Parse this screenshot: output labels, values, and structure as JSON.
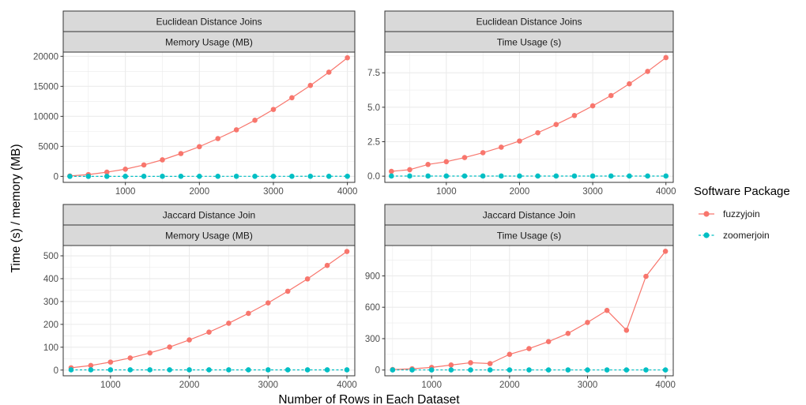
{
  "figure": {
    "ylabel": "Time (s) / memory (MB)",
    "xlabel": "Number of Rows in Each Dataset"
  },
  "legend": {
    "title": "Software Package",
    "items": [
      {
        "label": "fuzzyjoin",
        "color": "#F8766D",
        "linestyle": "solid"
      },
      {
        "label": "zoomerjoin",
        "color": "#00BFC4",
        "linestyle": "dashed"
      }
    ],
    "placement": "right"
  },
  "chart_data": [
    {
      "type": "line",
      "strip_top": "Euclidean Distance Joins",
      "strip_bottom": "Memory Usage (MB)",
      "xlim": [
        160,
        4100
      ],
      "ylim": [
        -1000,
        20700
      ],
      "xticks": [
        1000,
        2000,
        3000,
        4000
      ],
      "yticks": [
        0,
        5000,
        10000,
        15000,
        20000
      ],
      "ytick_labels": [
        "0",
        "5000",
        "10000",
        "15000",
        "20000"
      ],
      "series": [
        {
          "name": "fuzzyjoin",
          "x": [
            250,
            500,
            750,
            1000,
            1250,
            1500,
            1750,
            2000,
            2250,
            2500,
            2750,
            3000,
            3250,
            3500,
            3750,
            4000
          ],
          "y": [
            70,
            300,
            700,
            1200,
            1900,
            2750,
            3800,
            4950,
            6300,
            7750,
            9350,
            11150,
            13100,
            15150,
            17350,
            19750
          ]
        },
        {
          "name": "zoomerjoin",
          "x": [
            250,
            500,
            750,
            1000,
            1250,
            1500,
            1750,
            2000,
            2250,
            2500,
            2750,
            3000,
            3250,
            3500,
            3750,
            4000
          ],
          "y": [
            2,
            3,
            4,
            5,
            6,
            7,
            8,
            9,
            10,
            11,
            12,
            13,
            14,
            15,
            16,
            17
          ]
        }
      ]
    },
    {
      "type": "line",
      "strip_top": "Euclidean Distance Joins",
      "strip_bottom": "Time Usage (s)",
      "xlim": [
        160,
        4100
      ],
      "ylim": [
        -0.45,
        9.0
      ],
      "xticks": [
        1000,
        2000,
        3000,
        4000
      ],
      "yticks": [
        0.0,
        2.5,
        5.0,
        7.5
      ],
      "ytick_labels": [
        "0.0",
        "2.5",
        "5.0",
        "7.5"
      ],
      "series": [
        {
          "name": "fuzzyjoin",
          "x": [
            250,
            500,
            750,
            1000,
            1250,
            1500,
            1750,
            2000,
            2250,
            2500,
            2750,
            3000,
            3250,
            3500,
            3750,
            4000
          ],
          "y": [
            0.35,
            0.47,
            0.85,
            1.05,
            1.35,
            1.7,
            2.1,
            2.55,
            3.15,
            3.75,
            4.4,
            5.1,
            5.85,
            6.7,
            7.6,
            8.6
          ]
        },
        {
          "name": "zoomerjoin",
          "x": [
            250,
            500,
            750,
            1000,
            1250,
            1500,
            1750,
            2000,
            2250,
            2500,
            2750,
            3000,
            3250,
            3500,
            3750,
            4000
          ],
          "y": [
            0.01,
            0.01,
            0.01,
            0.01,
            0.01,
            0.01,
            0.01,
            0.01,
            0.01,
            0.01,
            0.01,
            0.01,
            0.01,
            0.01,
            0.01,
            0.01
          ]
        }
      ]
    },
    {
      "type": "line",
      "strip_top": "Jaccard Distance Join",
      "strip_bottom": "Memory Usage (MB)",
      "xlim": [
        400,
        4100
      ],
      "ylim": [
        -25,
        545
      ],
      "xticks": [
        1000,
        2000,
        3000,
        4000
      ],
      "yticks": [
        0,
        100,
        200,
        300,
        400,
        500
      ],
      "ytick_labels": [
        "0",
        "100",
        "200",
        "300",
        "400",
        "500"
      ],
      "series": [
        {
          "name": "fuzzyjoin",
          "x": [
            500,
            750,
            1000,
            1250,
            1500,
            1750,
            2000,
            2250,
            2500,
            2750,
            3000,
            3250,
            3500,
            3750,
            4000
          ],
          "y": [
            10,
            20,
            35,
            53,
            75,
            101,
            132,
            166,
            205,
            248,
            294,
            345,
            399,
            458,
            519
          ]
        },
        {
          "name": "zoomerjoin",
          "x": [
            500,
            750,
            1000,
            1250,
            1500,
            1750,
            2000,
            2250,
            2500,
            2750,
            3000,
            3250,
            3500,
            3750,
            4000
          ],
          "y": [
            1,
            1,
            1,
            1,
            1,
            1,
            1,
            1,
            1,
            1,
            1,
            1,
            1,
            1,
            1
          ]
        }
      ]
    },
    {
      "type": "line",
      "strip_top": "Jaccard Distance Join",
      "strip_bottom": "Time Usage (s)",
      "xlim": [
        400,
        4100
      ],
      "ylim": [
        -55,
        1190
      ],
      "xticks": [
        1000,
        2000,
        3000,
        4000
      ],
      "yticks": [
        0,
        300,
        600,
        900
      ],
      "ytick_labels": [
        "0",
        "300",
        "600",
        "900"
      ],
      "series": [
        {
          "name": "fuzzyjoin",
          "x": [
            500,
            750,
            1000,
            1250,
            1500,
            1750,
            2000,
            2250,
            2500,
            2750,
            3000,
            3250,
            3500,
            3750,
            4000
          ],
          "y": [
            5,
            12,
            25,
            48,
            70,
            62,
            150,
            205,
            272,
            350,
            455,
            570,
            380,
            895,
            1135
          ]
        },
        {
          "name": "zoomerjoin",
          "x": [
            500,
            750,
            1000,
            1250,
            1500,
            1750,
            2000,
            2250,
            2500,
            2750,
            3000,
            3250,
            3500,
            3750,
            4000
          ],
          "y": [
            1,
            1,
            1,
            1,
            1,
            1,
            1,
            1,
            1,
            1,
            1,
            1,
            1,
            1,
            1
          ]
        }
      ]
    }
  ]
}
